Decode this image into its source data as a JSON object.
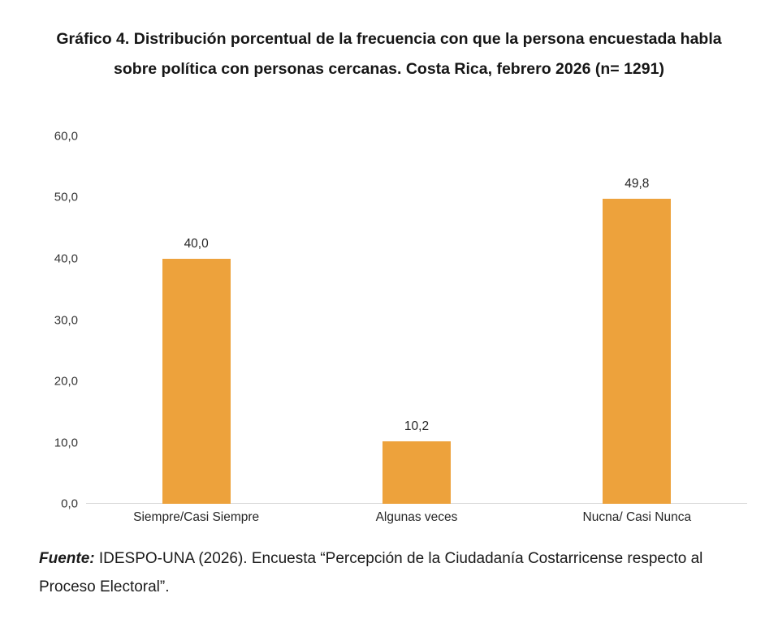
{
  "title": {
    "text": "Gráfico 4. Distribución porcentual de la frecuencia con que la persona encuestada habla sobre política con personas cercanas. Costa Rica, febrero 2026 (n= 1291)"
  },
  "chart_data": {
    "type": "bar",
    "title": "Gráfico 4. Distribución porcentual de la frecuencia con que la persona encuestada habla sobre política con personas cercanas. Costa Rica, febrero 2026 (n= 1291)",
    "categories": [
      "Siempre/Casi Siempre",
      "Algunas veces",
      "Nucna/ Casi Nunca"
    ],
    "values": [
      40.0,
      10.2,
      49.8
    ],
    "value_labels": [
      "40,0",
      "10,2",
      "49,8"
    ],
    "xlabel": "",
    "ylabel": "",
    "ylim": [
      0,
      60
    ],
    "ytick_step": 10,
    "ytick_labels": [
      "0,0",
      "10,0",
      "20,0",
      "30,0",
      "40,0",
      "50,0",
      "60,0"
    ],
    "grid": false,
    "legend_position": "none",
    "bar_color": "#EDA23C"
  },
  "footer": {
    "prefix": "Fuente:",
    "text": " IDESPO-UNA (2026). Encuesta “Percepción de la Ciudadanía Costarricense respecto al Proceso Electoral”."
  }
}
